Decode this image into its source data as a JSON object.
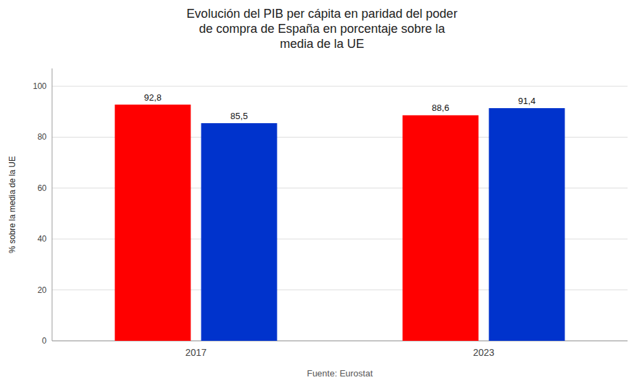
{
  "chart_data": {
    "type": "bar",
    "title": "Evolución del PIB per cápita en paridad del poder\nde compra de España en porcentaje sobre la\nmedia de la UE",
    "xlabel": "Fuente: Eurostat",
    "ylabel": "% sobre la media de la UE",
    "categories": [
      "2017",
      "2023"
    ],
    "series": [
      {
        "color": "#FF0000",
        "values": [
          92.8,
          88.6
        ],
        "value_labels": [
          "92,8",
          "88,6"
        ]
      },
      {
        "color": "#0033CC",
        "values": [
          85.5,
          91.4
        ],
        "value_labels": [
          "85,5",
          "91,4"
        ]
      }
    ],
    "ylim": [
      0,
      107
    ],
    "yticks": [
      0,
      20,
      40,
      60,
      80,
      100
    ],
    "grid": true,
    "data_labels": true
  }
}
